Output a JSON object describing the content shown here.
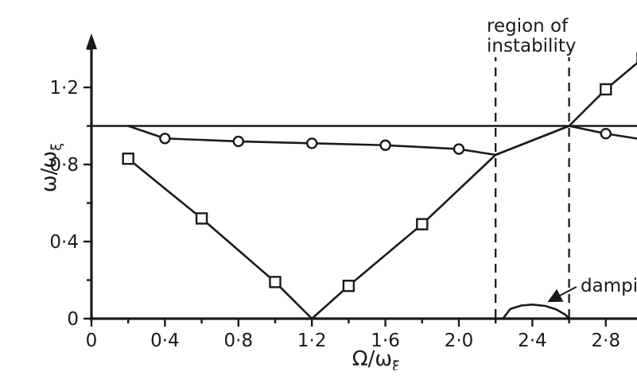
{
  "figure": {
    "background": "#ffffff"
  },
  "chart_data": {
    "type": "line",
    "title": "",
    "xlabel": {
      "main": "Ω/ω",
      "sub": "ξ"
    },
    "ylabel": {
      "main": "ω/ω",
      "sub": "ξ"
    },
    "xlim": [
      0,
      3.1
    ],
    "ylim": [
      0,
      1.45
    ],
    "grid": false,
    "legend": "none",
    "colors": {
      "stroke": "#1a1a1a",
      "marker_fill": "#ffffff",
      "background": "#ffffff"
    },
    "axes": {
      "x_major": [
        0,
        0.4,
        0.8,
        1.2,
        1.6,
        2.0,
        2.4,
        2.8
      ],
      "x_major_labels": [
        "0",
        "0·4",
        "0·8",
        "1·2",
        "1·6",
        "2·0",
        "2·4",
        "2·8"
      ],
      "x_minor": [
        0.2,
        0.6,
        1.0,
        1.4,
        1.8,
        2.2,
        2.6,
        3.0
      ],
      "y_major": [
        0,
        0.4,
        0.8,
        1.2
      ],
      "y_major_labels": [
        "0",
        "0·4",
        "0·8",
        "1·2"
      ],
      "y_minor": [
        0.2,
        0.6,
        1.0,
        1.4
      ]
    },
    "series": [
      {
        "name": "circle-marker-curve",
        "marker": "circle",
        "points": [
          [
            0.2,
            1.0
          ],
          [
            0.4,
            0.935
          ],
          [
            0.8,
            0.92
          ],
          [
            1.2,
            0.91
          ],
          [
            1.6,
            0.9
          ],
          [
            2.0,
            0.88
          ],
          [
            2.2,
            0.85
          ],
          [
            2.6,
            1.0
          ],
          [
            2.8,
            0.96
          ],
          [
            3.0,
            0.93
          ]
        ],
        "markers": [
          [
            0.4,
            0.935
          ],
          [
            0.8,
            0.92
          ],
          [
            1.2,
            0.91
          ],
          [
            1.6,
            0.9
          ],
          [
            2.0,
            0.88
          ],
          [
            2.8,
            0.96
          ],
          [
            3.0,
            0.93
          ]
        ]
      },
      {
        "name": "square-marker-curve",
        "marker": "square",
        "points": [
          [
            0.2,
            0.83
          ],
          [
            0.6,
            0.52
          ],
          [
            1.0,
            0.19
          ],
          [
            1.2,
            0.0
          ],
          [
            1.4,
            0.17
          ],
          [
            1.8,
            0.49
          ],
          [
            2.2,
            0.85
          ],
          [
            2.6,
            1.0
          ],
          [
            2.8,
            1.19
          ],
          [
            3.0,
            1.35
          ]
        ],
        "markers": [
          [
            0.2,
            0.83
          ],
          [
            0.6,
            0.52
          ],
          [
            1.0,
            0.19
          ],
          [
            1.4,
            0.17
          ],
          [
            1.8,
            0.49
          ],
          [
            2.8,
            1.19
          ],
          [
            3.0,
            1.35
          ]
        ]
      },
      {
        "name": "damping-curve",
        "marker": "none",
        "points": [
          [
            2.24,
            0.0
          ],
          [
            2.28,
            0.05
          ],
          [
            2.34,
            0.068
          ],
          [
            2.4,
            0.073
          ],
          [
            2.47,
            0.066
          ],
          [
            2.53,
            0.048
          ],
          [
            2.58,
            0.02
          ],
          [
            2.6,
            0.0
          ]
        ],
        "markers": []
      }
    ],
    "annotations": {
      "region_label_line1": "region of",
      "region_label_line2": "instability",
      "damping_label": "damping",
      "reference_line_y": 1.0,
      "dashed_lines_x": [
        2.2,
        2.6
      ],
      "damping_arrow": {
        "from": [
          2.64,
          0.165
        ],
        "to": [
          2.49,
          0.09
        ]
      }
    }
  }
}
